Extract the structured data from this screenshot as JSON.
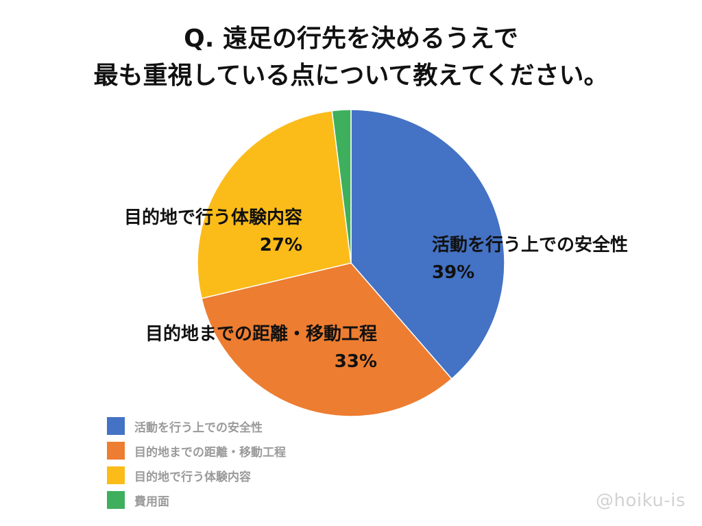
{
  "title_lines": [
    "Q. 遠足の行先を決めるうえで",
    "最も重視している点について教えてください。"
  ],
  "chart_data": {
    "type": "pie",
    "start_angle_deg": 0,
    "direction": "clockwise",
    "categories": [
      "活動を行う上での安全性",
      "目的地までの距離・移動工程",
      "目的地で行う体験内容",
      "費用面"
    ],
    "values": [
      39,
      33,
      27,
      2
    ],
    "value_labels": [
      "39%",
      "33%",
      "27%",
      ""
    ],
    "colors": [
      "#4472C4",
      "#ED7D31",
      "#FBBC19",
      "#3EAF5C"
    ],
    "legend_position": "bottom-left"
  },
  "labels": {
    "safety": {
      "name": "活動を行う上での安全性",
      "pct": "39%"
    },
    "distance": {
      "name": "目的地までの距離・移動工程",
      "pct": "33%"
    },
    "experience": {
      "name": "目的地で行う体験内容",
      "pct": "27%"
    }
  },
  "legend": [
    {
      "label": "活動を行う上での安全性",
      "color": "#4472C4"
    },
    {
      "label": "目的地までの距離・移動工程",
      "color": "#ED7D31"
    },
    {
      "label": "目的地で行う体験内容",
      "color": "#FBBC19"
    },
    {
      "label": "費用面",
      "color": "#3EAF5C"
    }
  ],
  "watermark": "@hoiku-is"
}
